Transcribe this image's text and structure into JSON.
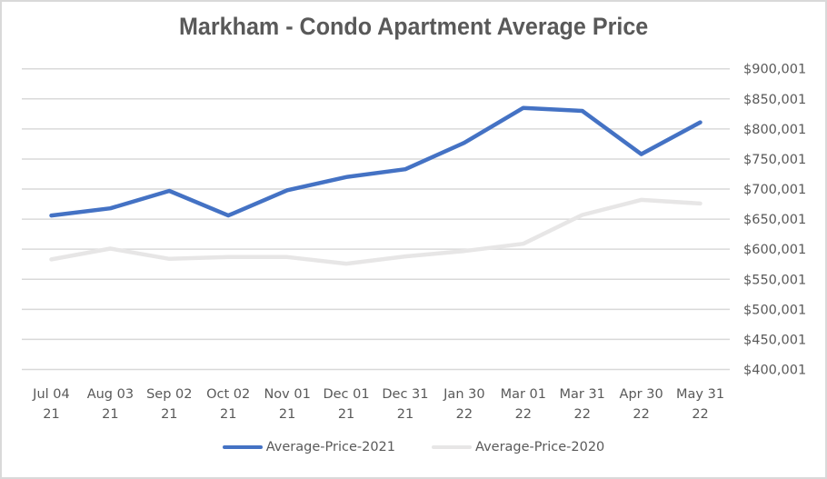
{
  "chart_data": {
    "type": "line",
    "title": "Markham - Condo Apartment Average Price",
    "xlabel": "",
    "ylabel": "",
    "categories": [
      [
        "Jul 04",
        "21"
      ],
      [
        "Aug 03",
        "21"
      ],
      [
        "Sep 02",
        "21"
      ],
      [
        "Oct 02",
        "21"
      ],
      [
        "Nov 01",
        "21"
      ],
      [
        "Dec 01",
        "21"
      ],
      [
        "Dec 31",
        "21"
      ],
      [
        "Jan 30",
        "22"
      ],
      [
        "Mar 01",
        "22"
      ],
      [
        "Mar 31",
        "22"
      ],
      [
        "Apr 30",
        "22"
      ],
      [
        "May 31",
        "22"
      ]
    ],
    "ylim": [
      400001,
      900001
    ],
    "y_ticks": [
      400001,
      450001,
      500001,
      550001,
      600001,
      650001,
      700001,
      750001,
      800001,
      850001,
      900001
    ],
    "y_tick_labels": [
      "$400,001",
      "$450,001",
      "$500,001",
      "$550,001",
      "$600,001",
      "$650,001",
      "$700,001",
      "$750,001",
      "$800,001",
      "$850,001",
      "$900,001"
    ],
    "y_axis_side": "right",
    "grid": true,
    "legend_position": "bottom",
    "series": [
      {
        "name": "Average-Price-2021",
        "color": "#4472c4",
        "values": [
          656000,
          668000,
          697000,
          656000,
          698000,
          720000,
          733000,
          777000,
          835000,
          830000,
          758000,
          811000
        ]
      },
      {
        "name": "Average-Price-2020",
        "color": "#e7e6e6",
        "values": [
          583000,
          601000,
          584000,
          587000,
          587000,
          576000,
          588000,
          597000,
          609000,
          657000,
          682000,
          676000
        ]
      }
    ]
  },
  "colors": {
    "title": "#595959",
    "axis_text": "#595959",
    "gridline": "#d9d9d9",
    "border": "#d9d9d9"
  }
}
